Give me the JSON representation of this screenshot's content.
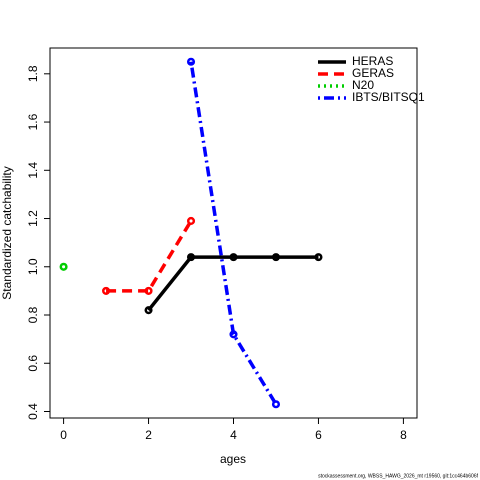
{
  "chart_data": {
    "type": "line",
    "xlabel": "ages",
    "ylabel": "Standardized catchability",
    "xlim": [
      -0.32,
      8.32
    ],
    "xticks": [
      0,
      2,
      4,
      6,
      8
    ],
    "ylim": [
      0.373,
      1.907
    ],
    "yticks": [
      {
        "value": 0.4,
        "label": "0.4"
      },
      {
        "value": 0.6,
        "label": "0.6"
      },
      {
        "value": 0.8,
        "label": "0.8"
      },
      {
        "value": 1.0,
        "label": "1.0"
      },
      {
        "value": 1.2,
        "label": "1.2"
      },
      {
        "value": 1.4,
        "label": "1.4"
      },
      {
        "value": 1.6,
        "label": "1.6"
      },
      {
        "value": 1.8,
        "label": "1.8"
      }
    ],
    "legend": "topright",
    "footnote": "stockassessment.org, WBSS_HAWG_2026_mt r19560, git:1cc464b606f",
    "series": [
      {
        "name": "HERAS",
        "color": "#000000",
        "linestyle": "solid",
        "x": [
          2,
          3,
          4,
          5,
          6
        ],
        "values": [
          0.82,
          1.04,
          1.04,
          1.04,
          1.04
        ]
      },
      {
        "name": "GERAS",
        "color": "#ff0000",
        "linestyle": "dashed",
        "x": [
          1,
          2,
          3
        ],
        "values": [
          0.9,
          0.9,
          1.19
        ]
      },
      {
        "name": "N20",
        "color": "#00cd00",
        "linestyle": "dotted",
        "x": [
          0
        ],
        "values": [
          1.0
        ]
      },
      {
        "name": "IBTS/BITSQ1",
        "color": "#0000ff",
        "linestyle": "dotdash",
        "x": [
          3,
          4,
          5
        ],
        "values": [
          1.85,
          0.72,
          0.43
        ]
      }
    ]
  }
}
